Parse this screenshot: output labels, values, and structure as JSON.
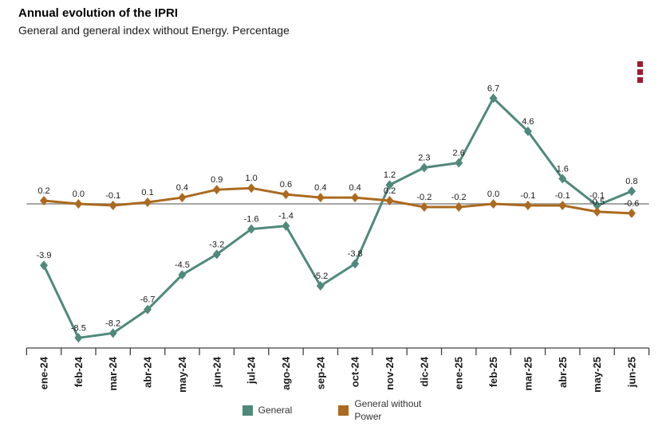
{
  "header": {
    "title": "Annual evolution of the IPRI",
    "subtitle": "General and general index without Energy. Percentage"
  },
  "icons": {
    "kebab_menu": "vertical-three-squares-menu"
  },
  "colors": {
    "general": "#4f897b",
    "general_without_energy": "#ab6a1f",
    "zero_line": "#a6a6a6",
    "axis": "#404040",
    "menu_icon": "#9e1b30",
    "label_text": "#1a1a1a"
  },
  "chart_data": {
    "type": "line",
    "title": "Annual evolution of the IPRI",
    "subtitle": "General and general index without Energy. Percentage",
    "unit": "%",
    "x": [
      "ene-24",
      "feb-24",
      "mar-24",
      "abr-24",
      "may-24",
      "jun-24",
      "jul-24",
      "ago-24",
      "sep-24",
      "oct-24",
      "nov-24",
      "dic-24",
      "ene-25",
      "feb-25",
      "mar-25",
      "abr-25",
      "may-25",
      "jun-25"
    ],
    "series": [
      {
        "name": "General",
        "color": "#4f897b",
        "values": [
          -3.9,
          -8.5,
          -8.2,
          -6.7,
          -4.5,
          -3.2,
          -1.6,
          -1.4,
          -5.2,
          -3.8,
          1.2,
          2.3,
          2.6,
          6.7,
          4.6,
          1.6,
          -0.1,
          0.8
        ]
      },
      {
        "name": "General without Power",
        "color": "#ab6a1f",
        "values": [
          0.2,
          0.0,
          -0.1,
          0.1,
          0.4,
          0.9,
          1.0,
          0.6,
          0.4,
          0.4,
          0.2,
          -0.2,
          -0.2,
          0.0,
          -0.1,
          -0.1,
          -0.5,
          -0.6
        ]
      }
    ],
    "xlabel": "",
    "ylabel": "",
    "ylim": [
      -9.1,
      8.9
    ],
    "grid": false,
    "zero_line": true,
    "data_labels": true,
    "marker": "diamond",
    "legend_position": "bottom"
  }
}
